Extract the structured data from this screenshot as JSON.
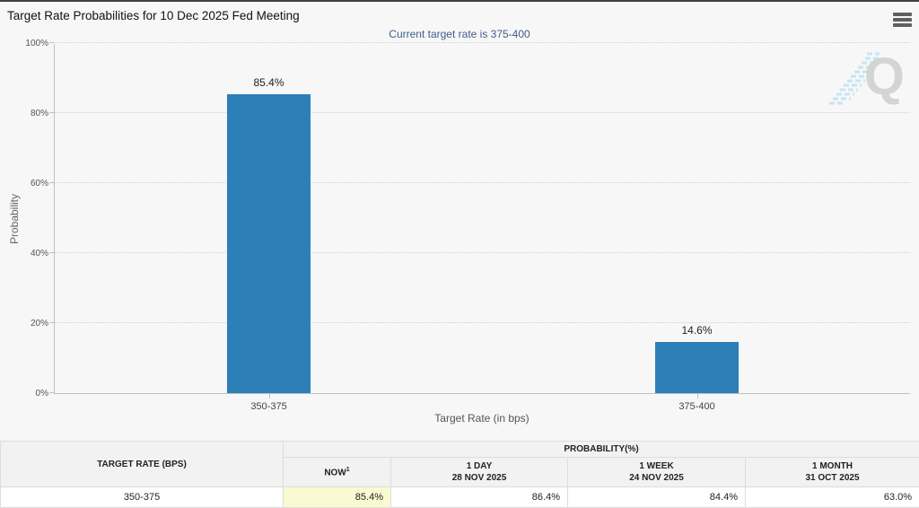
{
  "header": {
    "title": "Target Rate Probabilities for 10 Dec 2025 Fed Meeting",
    "menu_icon": "hamburger-menu-icon"
  },
  "chart_data": {
    "type": "bar",
    "title": "Target Rate Probabilities for 10 Dec 2025 Fed Meeting",
    "subtitle": "Current target rate is 375-400",
    "categories": [
      "350-375",
      "375-400"
    ],
    "values": [
      85.4,
      14.6
    ],
    "value_labels": [
      "85.4%",
      "14.6%"
    ],
    "xlabel": "Target Rate (in bps)",
    "ylabel": "Probability",
    "ylim": [
      0,
      100
    ],
    "ytick_values": [
      0,
      20,
      40,
      60,
      80,
      100
    ],
    "ytick_labels": [
      "0%",
      "20%",
      "40%",
      "60%",
      "80%",
      "100%"
    ],
    "grid": "horizontal-dotted",
    "legend_position": "none",
    "bar_color": "#2d7fb8",
    "watermark_letter": "Q"
  },
  "table": {
    "rate_header": "TARGET RATE (BPS)",
    "group_header": "PROBABILITY(%)",
    "sub_headers": [
      {
        "line1": "NOW",
        "sup": "1",
        "line2": ""
      },
      {
        "line1": "1 DAY",
        "line2": "28 NOV 2025"
      },
      {
        "line1": "1 WEEK",
        "line2": "24 NOV 2025"
      },
      {
        "line1": "1 MONTH",
        "line2": "31 OCT 2025"
      }
    ],
    "rows": [
      {
        "rate": "350-375",
        "now": "85.4%",
        "day": "86.4%",
        "week": "84.4%",
        "month": "63.0%"
      }
    ]
  },
  "colors": {
    "bar": "#2d7fb8",
    "subtitle_text": "#3f5e8f",
    "now_highlight": "#fafad2",
    "watermark_stripes": "#c5e6f4"
  }
}
